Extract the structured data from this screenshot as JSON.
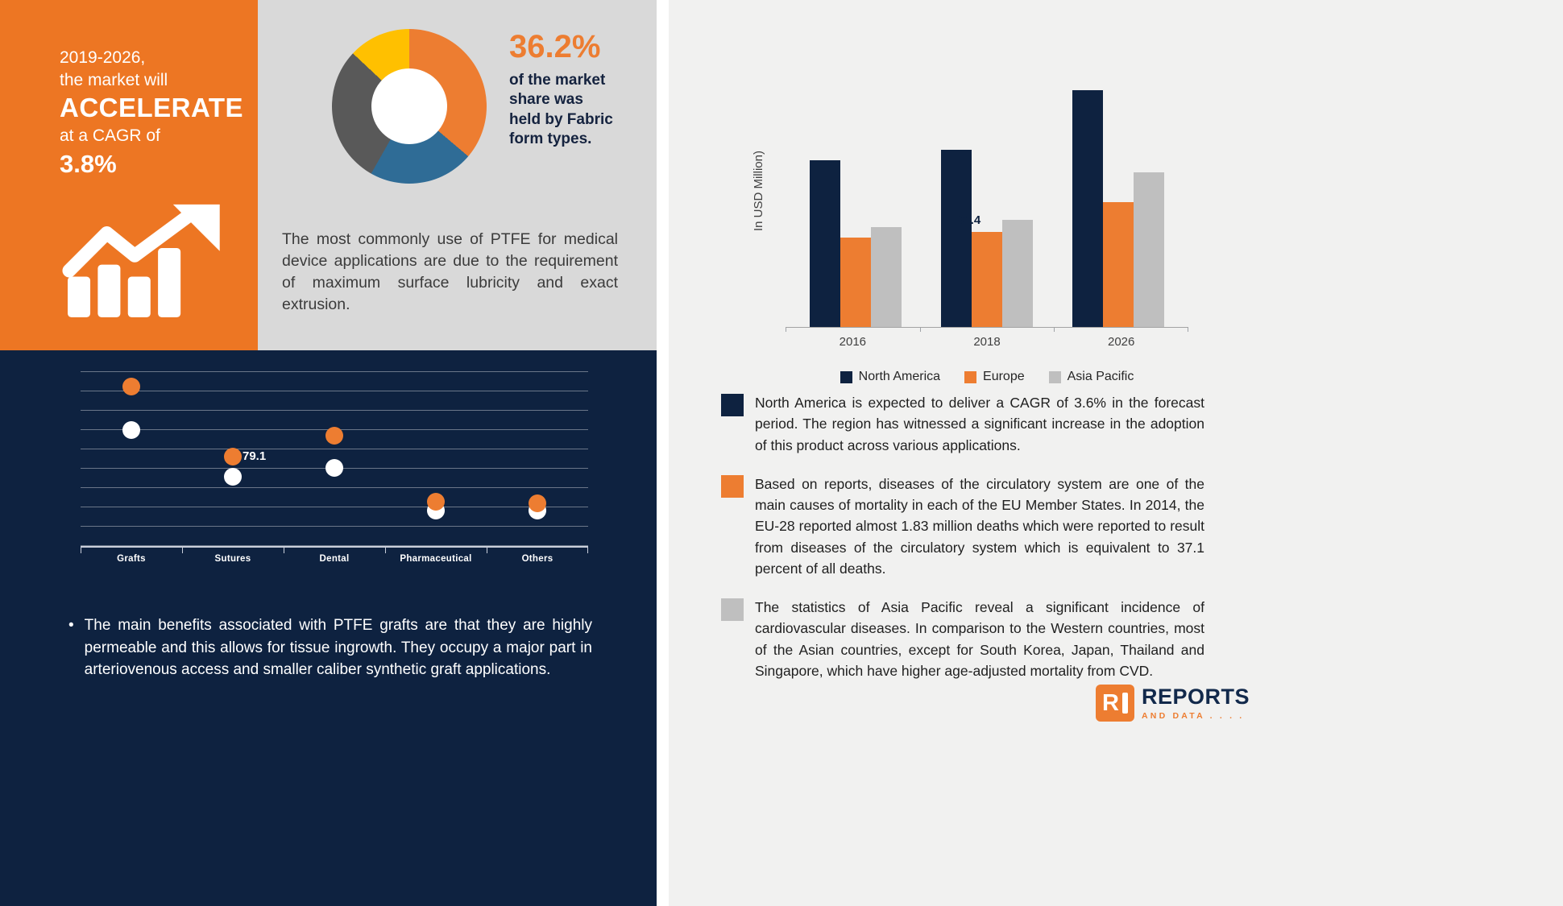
{
  "palette": {
    "orange": "#ED7D31",
    "navy": "#0E2240",
    "light_gray": "#D9D9D9",
    "panel_gray": "#F1F1F0",
    "donut_blue": "#2F6C96",
    "donut_gray": "#595959",
    "yellow": "#FFC000"
  },
  "left_panel": {
    "line1": "2019-2026,",
    "line2": "the market will",
    "accelerate": "ACCELERATE",
    "line3": "at a CAGR of",
    "cagr": "3.8%"
  },
  "donut_panel": {
    "stat": "36.2%",
    "stat_desc": "of the market share was held by Fabric form types.",
    "paragraph": "The most commonly use of PTFE for medical device applications are due to the requirement of maximum surface lubricity and exact extrusion."
  },
  "navy_panel": {
    "bullet_char": "•",
    "bullet": "The main benefits associated with PTFE grafts are that they are highly permeable and this allows for tissue ingrowth. They occupy a major part in arteriovenous access and smaller caliber synthetic graft applications."
  },
  "right_panel": {
    "bullets": [
      {
        "color": "#0E2240",
        "text": "North America is expected to deliver a CAGR of 3.6% in the forecast period. The region has witnessed a significant increase in the adoption of this product across various applications."
      },
      {
        "color": "#ED7D31",
        "text": "Based on reports, diseases of the circulatory system are one of the main causes of mortality in each of the EU Member States. In 2014, the EU-28 reported almost 1.83 million deaths which were reported to result from diseases of the circulatory system which is equivalent to 37.1 percent of all deaths."
      },
      {
        "color": "#BFBFBF",
        "text": "The statistics of Asia Pacific reveal a significant incidence of cardiovascular diseases. In comparison to the Western countries, most of the Asian countries, except for South Korea, Japan, Thailand and Singapore, which have higher age-adjusted mortality from CVD."
      }
    ],
    "logo": {
      "name": "REPORTS",
      "tagline": "AND DATA . . . ."
    }
  },
  "chart_data": [
    {
      "id": "form-share-donut",
      "type": "pie",
      "labels": [
        "Fabric",
        "segment-blue",
        "segment-gray",
        "segment-yellow"
      ],
      "values": [
        36.2,
        22.0,
        28.8,
        13.0
      ],
      "colors": [
        "#ED7D31",
        "#2F6C96",
        "#595959",
        "#FFC000"
      ],
      "annotation": "36.2% of the market share was held by Fabric form types."
    },
    {
      "id": "application-dot-plot",
      "type": "scatter",
      "categories": [
        "Grafts",
        "Sutures",
        "Dental",
        "Pharmaceutical",
        "Others"
      ],
      "series": [
        {
          "name": "orange",
          "color": "#ED7D31",
          "values": [
            182,
            102,
            126,
            50,
            48
          ]
        },
        {
          "name": "white",
          "color": "#FFFFFF",
          "values": [
            132,
            79.1,
            89,
            40,
            40
          ]
        }
      ],
      "data_label": {
        "category": "Sutures",
        "series": "white",
        "value": "79.1"
      },
      "ylim": [
        0,
        200
      ],
      "grid": true
    },
    {
      "id": "regional-bar-chart",
      "type": "bar",
      "categories": [
        "2016",
        "2018",
        "2026"
      ],
      "series": [
        {
          "name": "North America",
          "color": "#0E2240",
          "values": [
            160,
            170,
            227
          ]
        },
        {
          "name": "Europe",
          "color": "#ED7D31",
          "values": [
            86,
            91.4,
            120
          ]
        },
        {
          "name": "Asia Pacific",
          "color": "#BFBFBF",
          "values": [
            96,
            103,
            148
          ]
        }
      ],
      "ylabel": "In USD Million)",
      "data_label": {
        "category": "2018",
        "series": "Europe",
        "value": "91.4"
      },
      "ylim": [
        0,
        240
      ],
      "legend_position": "bottom"
    }
  ]
}
